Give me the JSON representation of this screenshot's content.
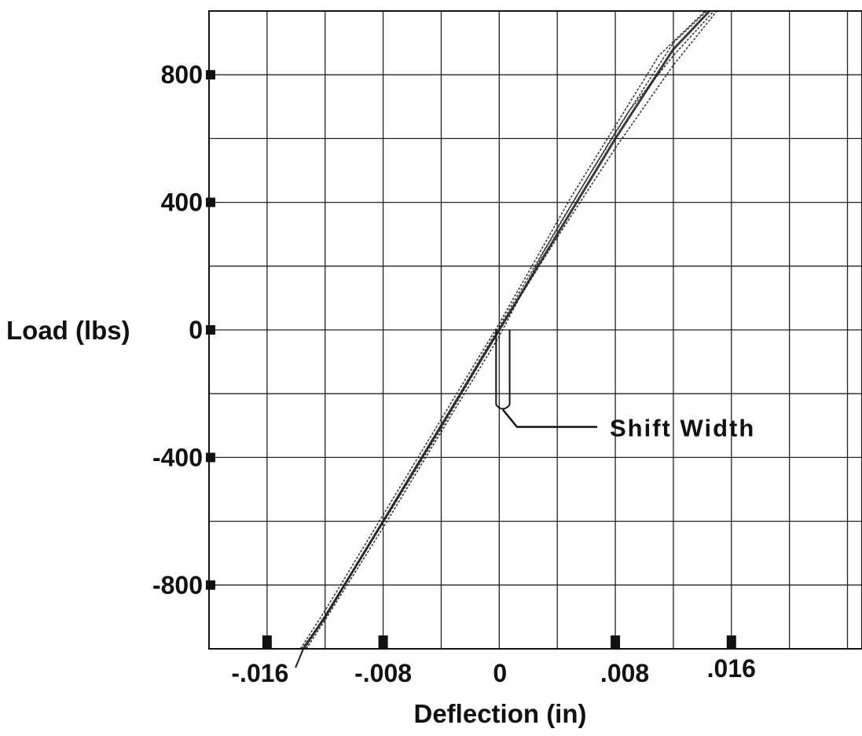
{
  "chart_data": {
    "type": "line",
    "title": "",
    "xlabel": "Deflection (in)",
    "ylabel": "Load (lbs)",
    "xlim": [
      -0.02,
      0.025
    ],
    "ylim": [
      -1000,
      1000
    ],
    "x_ticks": [
      {
        "value": -0.016,
        "label": "-.016"
      },
      {
        "value": -0.008,
        "label": "-.008"
      },
      {
        "value": 0,
        "label": "0"
      },
      {
        "value": 0.008,
        "label": ".008"
      },
      {
        "value": 0.016,
        "label": ".016"
      }
    ],
    "y_ticks": [
      {
        "value": 800,
        "label": "800"
      },
      {
        "value": 400,
        "label": "400"
      },
      {
        "value": 0,
        "label": "0"
      },
      {
        "value": -400,
        "label": "-400"
      },
      {
        "value": -800,
        "label": "-800"
      }
    ],
    "grid": true,
    "grid_x_step": 0.004,
    "grid_y_step": 200,
    "series": [
      {
        "x": [
          -0.0135,
          -0.012,
          -0.008,
          -0.004,
          0.0,
          0.004,
          0.008,
          0.012,
          0.0145
        ],
        "y": [
          -1000,
          -900,
          -600,
          -300,
          0,
          300,
          600,
          880,
          1000
        ]
      },
      {
        "x": [
          -0.0133,
          -0.012,
          -0.008,
          -0.004,
          0.0,
          0.003,
          0.006,
          0.009,
          0.012,
          0.0148
        ],
        "y": [
          -1000,
          -910,
          -620,
          -320,
          -20,
          240,
          470,
          690,
          860,
          1000
        ]
      },
      {
        "x": [
          -0.0137,
          -0.012,
          -0.008,
          -0.004,
          0.0,
          0.002,
          0.005,
          0.008,
          0.011,
          0.0142
        ],
        "y": [
          -1000,
          -880,
          -580,
          -280,
          20,
          180,
          420,
          640,
          860,
          1000
        ]
      },
      {
        "x": [
          -0.0134,
          -0.012,
          -0.008,
          -0.004,
          0.0,
          0.004,
          0.008,
          0.012,
          0.015
        ],
        "y": [
          -1000,
          -895,
          -605,
          -310,
          0,
          290,
          570,
          830,
          1000
        ]
      },
      {
        "x": [
          -0.0136,
          -0.012,
          -0.008,
          -0.004,
          0.0,
          0.004,
          0.008,
          0.012,
          0.0143
        ],
        "y": [
          -1000,
          -900,
          -600,
          -300,
          10,
          320,
          620,
          900,
          1000
        ]
      }
    ],
    "annotations": [
      {
        "text": "Shift Width",
        "x_left": 0.0,
        "x_right": 0.0005,
        "y_top": 0,
        "y_bottom": -250
      }
    ]
  }
}
